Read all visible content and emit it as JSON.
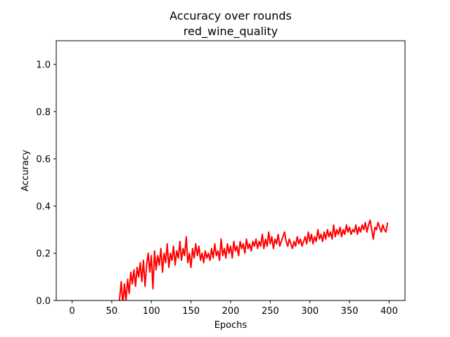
{
  "chart_data": {
    "type": "line",
    "title": "Accuracy over rounds",
    "subtitle": "red_wine_quality",
    "xlabel": "Epochs",
    "ylabel": "Accuracy",
    "xlim": [
      -20,
      420
    ],
    "ylim": [
      0.0,
      1.1
    ],
    "xticks": [
      0,
      50,
      100,
      150,
      200,
      250,
      300,
      350,
      400
    ],
    "yticks": [
      0.0,
      0.2,
      0.4,
      0.6,
      0.8,
      1.0
    ],
    "xtick_labels": [
      "0",
      "50",
      "100",
      "150",
      "200",
      "250",
      "300",
      "350",
      "400"
    ],
    "ytick_labels": [
      "0.0",
      "0.2",
      "0.4",
      "0.6",
      "0.8",
      "1.0"
    ],
    "grid": false,
    "legend": "none",
    "series": [
      {
        "color": "#ff0000",
        "points": [
          [
            58,
            -0.08
          ],
          [
            60,
            0.01
          ],
          [
            62,
            0.08
          ],
          [
            64,
            -0.02
          ],
          [
            66,
            0.07
          ],
          [
            68,
            0.0
          ],
          [
            70,
            0.09
          ],
          [
            72,
            0.03
          ],
          [
            74,
            0.12
          ],
          [
            76,
            0.07
          ],
          [
            78,
            0.13
          ],
          [
            80,
            0.06
          ],
          [
            82,
            0.14
          ],
          [
            84,
            0.1
          ],
          [
            86,
            0.16
          ],
          [
            88,
            0.08
          ],
          [
            90,
            0.17
          ],
          [
            92,
            0.06
          ],
          [
            94,
            0.15
          ],
          [
            96,
            0.2
          ],
          [
            98,
            0.12
          ],
          [
            100,
            0.19
          ],
          [
            102,
            0.05
          ],
          [
            104,
            0.21
          ],
          [
            106,
            0.13
          ],
          [
            108,
            0.19
          ],
          [
            110,
            0.15
          ],
          [
            112,
            0.22
          ],
          [
            114,
            0.12
          ],
          [
            116,
            0.2
          ],
          [
            118,
            0.16
          ],
          [
            120,
            0.24
          ],
          [
            122,
            0.14
          ],
          [
            124,
            0.2
          ],
          [
            126,
            0.17
          ],
          [
            128,
            0.23
          ],
          [
            130,
            0.15
          ],
          [
            132,
            0.21
          ],
          [
            134,
            0.18
          ],
          [
            136,
            0.25
          ],
          [
            138,
            0.17
          ],
          [
            140,
            0.22
          ],
          [
            142,
            0.19
          ],
          [
            144,
            0.27
          ],
          [
            146,
            0.16
          ],
          [
            148,
            0.2
          ],
          [
            150,
            0.14
          ],
          [
            152,
            0.22
          ],
          [
            154,
            0.18
          ],
          [
            156,
            0.24
          ],
          [
            158,
            0.19
          ],
          [
            160,
            0.23
          ],
          [
            162,
            0.17
          ],
          [
            164,
            0.2
          ],
          [
            166,
            0.16
          ],
          [
            168,
            0.21
          ],
          [
            170,
            0.18
          ],
          [
            172,
            0.2
          ],
          [
            174,
            0.17
          ],
          [
            176,
            0.22
          ],
          [
            178,
            0.18
          ],
          [
            180,
            0.24
          ],
          [
            182,
            0.19
          ],
          [
            184,
            0.21
          ],
          [
            186,
            0.17
          ],
          [
            188,
            0.26
          ],
          [
            190,
            0.19
          ],
          [
            192,
            0.22
          ],
          [
            194,
            0.18
          ],
          [
            196,
            0.24
          ],
          [
            198,
            0.2
          ],
          [
            200,
            0.23
          ],
          [
            202,
            0.18
          ],
          [
            204,
            0.25
          ],
          [
            206,
            0.21
          ],
          [
            208,
            0.23
          ],
          [
            210,
            0.19
          ],
          [
            212,
            0.25
          ],
          [
            214,
            0.22
          ],
          [
            216,
            0.24
          ],
          [
            218,
            0.2
          ],
          [
            220,
            0.26
          ],
          [
            222,
            0.22
          ],
          [
            224,
            0.24
          ],
          [
            226,
            0.21
          ],
          [
            228,
            0.25
          ],
          [
            230,
            0.23
          ],
          [
            232,
            0.26
          ],
          [
            234,
            0.22
          ],
          [
            236,
            0.25
          ],
          [
            238,
            0.23
          ],
          [
            240,
            0.28
          ],
          [
            242,
            0.22
          ],
          [
            244,
            0.26
          ],
          [
            246,
            0.23
          ],
          [
            248,
            0.29
          ],
          [
            250,
            0.24
          ],
          [
            252,
            0.27
          ],
          [
            254,
            0.22
          ],
          [
            256,
            0.26
          ],
          [
            258,
            0.24
          ],
          [
            260,
            0.28
          ],
          [
            262,
            0.23
          ],
          [
            264,
            0.25
          ],
          [
            266,
            0.27
          ],
          [
            268,
            0.29
          ],
          [
            270,
            0.25
          ],
          [
            272,
            0.23
          ],
          [
            274,
            0.26
          ],
          [
            276,
            0.24
          ],
          [
            278,
            0.22
          ],
          [
            280,
            0.25
          ],
          [
            282,
            0.23
          ],
          [
            284,
            0.27
          ],
          [
            286,
            0.24
          ],
          [
            288,
            0.26
          ],
          [
            290,
            0.23
          ],
          [
            292,
            0.25
          ],
          [
            294,
            0.27
          ],
          [
            296,
            0.24
          ],
          [
            298,
            0.29
          ],
          [
            300,
            0.25
          ],
          [
            302,
            0.28
          ],
          [
            304,
            0.24
          ],
          [
            306,
            0.27
          ],
          [
            308,
            0.25
          ],
          [
            310,
            0.3
          ],
          [
            312,
            0.26
          ],
          [
            314,
            0.28
          ],
          [
            316,
            0.25
          ],
          [
            318,
            0.29
          ],
          [
            320,
            0.26
          ],
          [
            322,
            0.3
          ],
          [
            324,
            0.27
          ],
          [
            326,
            0.29
          ],
          [
            328,
            0.26
          ],
          [
            330,
            0.32
          ],
          [
            332,
            0.27
          ],
          [
            334,
            0.3
          ],
          [
            336,
            0.28
          ],
          [
            338,
            0.31
          ],
          [
            340,
            0.27
          ],
          [
            342,
            0.3
          ],
          [
            344,
            0.28
          ],
          [
            346,
            0.32
          ],
          [
            348,
            0.29
          ],
          [
            350,
            0.31
          ],
          [
            352,
            0.28
          ],
          [
            354,
            0.3
          ],
          [
            356,
            0.29
          ],
          [
            358,
            0.32
          ],
          [
            360,
            0.28
          ],
          [
            362,
            0.31
          ],
          [
            364,
            0.29
          ],
          [
            366,
            0.32
          ],
          [
            368,
            0.3
          ],
          [
            370,
            0.33
          ],
          [
            372,
            0.29
          ],
          [
            374,
            0.32
          ],
          [
            376,
            0.34
          ],
          [
            378,
            0.3
          ],
          [
            380,
            0.26
          ],
          [
            382,
            0.31
          ],
          [
            384,
            0.3
          ],
          [
            386,
            0.33
          ],
          [
            388,
            0.31
          ],
          [
            390,
            0.29
          ],
          [
            392,
            0.32
          ],
          [
            394,
            0.3
          ],
          [
            396,
            0.29
          ],
          [
            398,
            0.33
          ]
        ]
      }
    ]
  }
}
